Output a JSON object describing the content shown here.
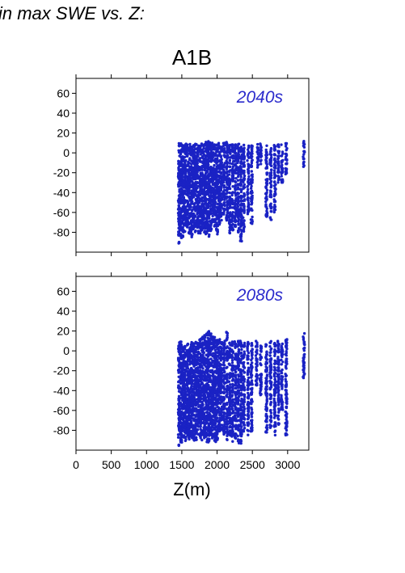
{
  "headline": "in max SWE vs. Z:",
  "scenario": "A1B",
  "colors": {
    "points": "#1a22c4",
    "panel_label": "#2a2acc",
    "axis": "#000000"
  },
  "chart_data": [
    {
      "type": "scatter",
      "panel_label": "2040s",
      "xlabel": "Z(m)",
      "ylabel": "",
      "xlim": [
        0,
        3300
      ],
      "ylim": [
        -100,
        75
      ],
      "xticks": [
        0,
        500,
        1000,
        1500,
        2000,
        2500,
        3000
      ],
      "yticks": [
        -80,
        -60,
        -40,
        -20,
        0,
        20,
        40,
        60
      ],
      "show_x_tick_labels": false,
      "columns": [
        {
          "x": 1460,
          "ymin": -92,
          "ymax": 10
        },
        {
          "x": 1490,
          "ymin": -88,
          "ymax": 10
        },
        {
          "x": 1520,
          "ymin": -85,
          "ymax": 11
        },
        {
          "x": 1550,
          "ymin": -80,
          "ymax": 10
        },
        {
          "x": 1580,
          "ymin": -75,
          "ymax": 10
        },
        {
          "x": 1610,
          "ymin": -82,
          "ymax": 9
        },
        {
          "x": 1640,
          "ymin": -85,
          "ymax": 9
        },
        {
          "x": 1670,
          "ymin": -78,
          "ymax": 9
        },
        {
          "x": 1700,
          "ymin": -80,
          "ymax": 9
        },
        {
          "x": 1730,
          "ymin": -85,
          "ymax": 9
        },
        {
          "x": 1760,
          "ymin": -82,
          "ymax": 9
        },
        {
          "x": 1790,
          "ymin": -78,
          "ymax": 10
        },
        {
          "x": 1820,
          "ymin": -80,
          "ymax": 10
        },
        {
          "x": 1850,
          "ymin": -82,
          "ymax": 12
        },
        {
          "x": 1880,
          "ymin": -85,
          "ymax": 12
        },
        {
          "x": 1910,
          "ymin": -80,
          "ymax": 11
        },
        {
          "x": 1940,
          "ymin": -70,
          "ymax": 10
        },
        {
          "x": 1970,
          "ymin": -75,
          "ymax": 10
        },
        {
          "x": 2000,
          "ymin": -82,
          "ymax": 10
        },
        {
          "x": 2030,
          "ymin": -75,
          "ymax": 10
        },
        {
          "x": 2060,
          "ymin": -68,
          "ymax": 9
        },
        {
          "x": 2100,
          "ymin": -62,
          "ymax": 10
        },
        {
          "x": 2140,
          "ymin": -70,
          "ymax": 11
        },
        {
          "x": 2180,
          "ymin": -82,
          "ymax": 10
        },
        {
          "x": 2220,
          "ymin": -78,
          "ymax": 9
        },
        {
          "x": 2260,
          "ymin": -75,
          "ymax": 9
        },
        {
          "x": 2300,
          "ymin": -80,
          "ymax": 9
        },
        {
          "x": 2340,
          "ymin": -92,
          "ymax": 8
        },
        {
          "x": 2380,
          "ymin": -80,
          "ymax": 8
        },
        {
          "x": 2440,
          "ymin": -62,
          "ymax": 8
        },
        {
          "x": 2490,
          "ymin": -72,
          "ymax": 9
        },
        {
          "x": 2580,
          "ymin": -15,
          "ymax": 9
        },
        {
          "x": 2620,
          "ymin": -12,
          "ymax": 10
        },
        {
          "x": 2700,
          "ymin": -65,
          "ymax": 8
        },
        {
          "x": 2760,
          "ymin": -68,
          "ymax": 6
        },
        {
          "x": 2820,
          "ymin": -60,
          "ymax": 8
        },
        {
          "x": 2870,
          "ymin": -30,
          "ymax": 9
        },
        {
          "x": 2920,
          "ymin": -30,
          "ymax": 9
        },
        {
          "x": 2980,
          "ymin": -22,
          "ymax": 10
        },
        {
          "x": 3230,
          "ymin": -14,
          "ymax": 12
        }
      ]
    },
    {
      "type": "scatter",
      "panel_label": "2080s",
      "xlabel": "Z(m)",
      "ylabel": "",
      "xlim": [
        0,
        3300
      ],
      "ylim": [
        -100,
        75
      ],
      "xticks": [
        0,
        500,
        1000,
        1500,
        2000,
        2500,
        3000
      ],
      "xtick_labels": [
        "0",
        "500",
        "1000",
        "1500",
        "2000",
        "2500",
        "3000"
      ],
      "yticks": [
        -80,
        -60,
        -40,
        -20,
        0,
        20,
        40,
        60
      ],
      "show_x_tick_labels": true,
      "columns": [
        {
          "x": 1460,
          "ymin": -96,
          "ymax": 11
        },
        {
          "x": 1490,
          "ymin": -93,
          "ymax": 10
        },
        {
          "x": 1520,
          "ymin": -88,
          "ymax": 8
        },
        {
          "x": 1550,
          "ymin": -92,
          "ymax": 6
        },
        {
          "x": 1580,
          "ymin": -85,
          "ymax": 8
        },
        {
          "x": 1610,
          "ymin": -90,
          "ymax": 7
        },
        {
          "x": 1640,
          "ymin": -88,
          "ymax": 9
        },
        {
          "x": 1670,
          "ymin": -92,
          "ymax": 9
        },
        {
          "x": 1700,
          "ymin": -90,
          "ymax": 10
        },
        {
          "x": 1730,
          "ymin": -85,
          "ymax": 10
        },
        {
          "x": 1760,
          "ymin": -88,
          "ymax": 12
        },
        {
          "x": 1790,
          "ymin": -90,
          "ymax": 14
        },
        {
          "x": 1820,
          "ymin": -88,
          "ymax": 16
        },
        {
          "x": 1850,
          "ymin": -92,
          "ymax": 18
        },
        {
          "x": 1880,
          "ymin": -93,
          "ymax": 20
        },
        {
          "x": 1910,
          "ymin": -85,
          "ymax": 18
        },
        {
          "x": 1940,
          "ymin": -88,
          "ymax": 15
        },
        {
          "x": 1970,
          "ymin": -92,
          "ymax": 14
        },
        {
          "x": 2000,
          "ymin": -90,
          "ymax": 12
        },
        {
          "x": 2030,
          "ymin": -82,
          "ymax": 12
        },
        {
          "x": 2060,
          "ymin": -80,
          "ymax": 10
        },
        {
          "x": 2100,
          "ymin": -85,
          "ymax": 10
        },
        {
          "x": 2140,
          "ymin": -90,
          "ymax": 19
        },
        {
          "x": 2180,
          "ymin": -86,
          "ymax": 10
        },
        {
          "x": 2220,
          "ymin": -92,
          "ymax": 10
        },
        {
          "x": 2260,
          "ymin": -88,
          "ymax": 10
        },
        {
          "x": 2300,
          "ymin": -95,
          "ymax": 10
        },
        {
          "x": 2340,
          "ymin": -94,
          "ymax": 12
        },
        {
          "x": 2380,
          "ymin": -82,
          "ymax": 8
        },
        {
          "x": 2440,
          "ymin": -85,
          "ymax": 10
        },
        {
          "x": 2490,
          "ymin": -82,
          "ymax": 10
        },
        {
          "x": 2560,
          "ymin": -35,
          "ymax": 10
        },
        {
          "x": 2620,
          "ymin": -45,
          "ymax": 8
        },
        {
          "x": 2700,
          "ymin": -82,
          "ymax": 8
        },
        {
          "x": 2760,
          "ymin": -80,
          "ymax": 10
        },
        {
          "x": 2820,
          "ymin": -85,
          "ymax": 9
        },
        {
          "x": 2870,
          "ymin": -75,
          "ymax": 10
        },
        {
          "x": 2920,
          "ymin": -60,
          "ymax": 8
        },
        {
          "x": 2980,
          "ymin": -85,
          "ymax": 12
        },
        {
          "x": 3230,
          "ymin": -30,
          "ymax": 18
        }
      ]
    }
  ]
}
